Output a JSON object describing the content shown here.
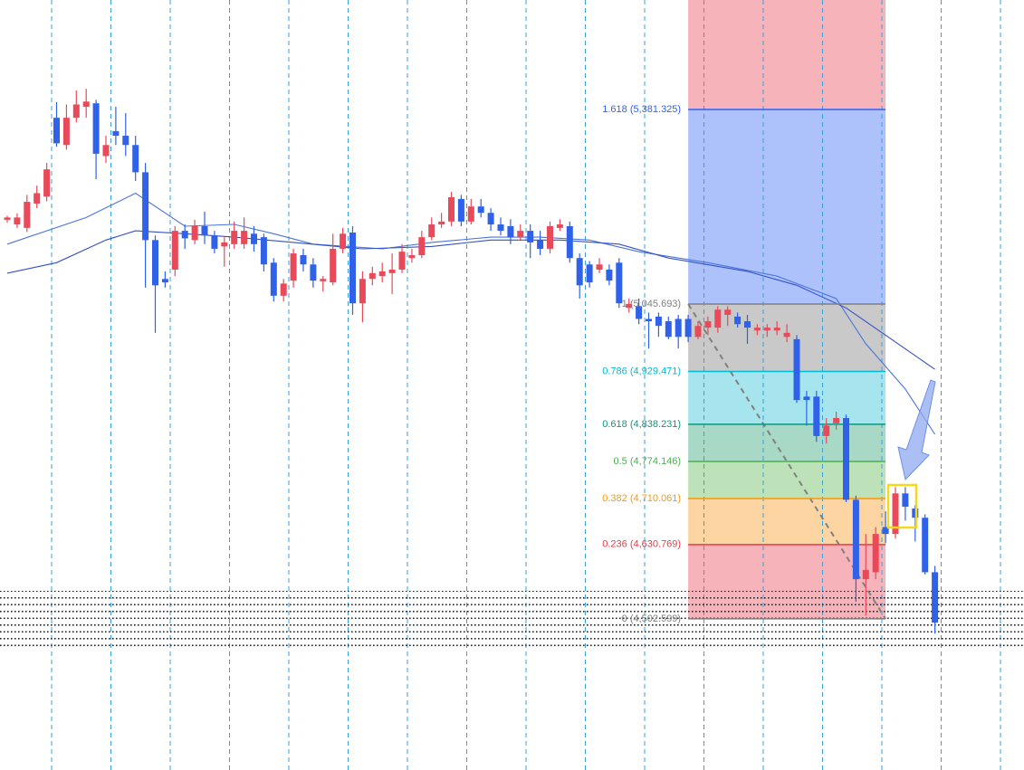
{
  "chart_data": {
    "type": "candlestick",
    "ylim": [
      4241.8,
      5570.2
    ],
    "up_color": "#e84a5a",
    "down_color": "#2f62e8",
    "candles": {
      "open": [
        5191,
        5183,
        5177,
        5219,
        5231,
        5367,
        5320,
        5367,
        5386,
        5392,
        5301,
        5344,
        5336,
        5320,
        5273,
        5156,
        5089,
        5105,
        5172,
        5156,
        5180,
        5164,
        5145,
        5149,
        5149,
        5167,
        5161,
        5117,
        5060,
        5086,
        5130,
        5114,
        5085,
        5083,
        5141,
        5169,
        5047,
        5089,
        5094,
        5099,
        5105,
        5125,
        5130,
        5161,
        5183,
        5188,
        5227,
        5188,
        5214,
        5203,
        5183,
        5180,
        5161,
        5172,
        5156,
        5141,
        5177,
        5180,
        5125,
        5114,
        5105,
        5105,
        5117,
        5039,
        5042,
        5020,
        5024,
        5016,
        5020,
        5020,
        4989,
        5005,
        5005,
        5027,
        5024,
        5016,
        5000,
        5000,
        5000,
        4989,
        4985,
        4886,
        4886,
        4818,
        4840,
        4849,
        4708,
        4571,
        4583,
        4661,
        4649,
        4719,
        4693,
        4677,
        4583
      ],
      "high": [
        5198,
        5202,
        5234,
        5250,
        5289,
        5394,
        5390,
        5414,
        5417,
        5398,
        5336,
        5386,
        5375,
        5336,
        5289,
        5164,
        5102,
        5180,
        5183,
        5191,
        5205,
        5172,
        5161,
        5188,
        5195,
        5180,
        5167,
        5125,
        5089,
        5141,
        5141,
        5125,
        5094,
        5167,
        5177,
        5180,
        5102,
        5110,
        5117,
        5133,
        5149,
        5141,
        5172,
        5195,
        5203,
        5239,
        5234,
        5227,
        5227,
        5211,
        5195,
        5192,
        5183,
        5183,
        5172,
        5188,
        5192,
        5188,
        5133,
        5120,
        5125,
        5114,
        5125,
        5055,
        5055,
        5031,
        5031,
        5024,
        5027,
        5027,
        5016,
        5024,
        5042,
        5042,
        5031,
        5027,
        5011,
        5011,
        5016,
        5011,
        4992,
        4896,
        4896,
        4849,
        4860,
        4855,
        4715,
        4649,
        4661,
        4688,
        4730,
        4730,
        4699,
        4683,
        4594
      ],
      "low": [
        5186,
        5177,
        5170,
        5211,
        5223,
        5317,
        5312,
        5359,
        5367,
        5261,
        5289,
        5320,
        5301,
        5258,
        5074,
        4996,
        5074,
        5094,
        5141,
        5149,
        5149,
        5133,
        5110,
        5141,
        5141,
        5136,
        5102,
        5050,
        5050,
        5074,
        5102,
        5074,
        5067,
        5078,
        5133,
        5027,
        5014,
        5078,
        5083,
        5063,
        5099,
        5117,
        5125,
        5156,
        5177,
        5180,
        5180,
        5183,
        5195,
        5172,
        5164,
        5149,
        5156,
        5125,
        5130,
        5133,
        5172,
        5117,
        5055,
        5074,
        5099,
        5078,
        5039,
        5031,
        5011,
        4969,
        4989,
        4985,
        4969,
        4980,
        4985,
        4992,
        4996,
        5008,
        5005,
        4977,
        4992,
        4989,
        4992,
        4980,
        4875,
        4836,
        4808,
        4805,
        4829,
        4704,
        4532,
        4508,
        4571,
        4633,
        4641,
        4672,
        4636,
        4579,
        4477
      ],
      "close": [
        5195,
        5195,
        5222,
        5237,
        5278,
        5323,
        5367,
        5390,
        5395,
        5305,
        5320,
        5336,
        5320,
        5273,
        5156,
        5078,
        5083,
        5172,
        5159,
        5180,
        5164,
        5141,
        5152,
        5172,
        5172,
        5149,
        5114,
        5060,
        5081,
        5133,
        5114,
        5086,
        5089,
        5141,
        5167,
        5047,
        5089,
        5099,
        5102,
        5105,
        5136,
        5130,
        5161,
        5183,
        5188,
        5230,
        5188,
        5214,
        5203,
        5183,
        5172,
        5161,
        5172,
        5152,
        5141,
        5180,
        5183,
        5125,
        5078,
        5083,
        5114,
        5086,
        5047,
        5046,
        5020,
        5016,
        5008,
        4989,
        4989,
        4989,
        5008,
        5016,
        5036,
        5036,
        5011,
        5005,
        5005,
        5005,
        5005,
        4996,
        4880,
        4880,
        4818,
        4836,
        4849,
        4708,
        4571,
        4587,
        4649,
        4649,
        4719,
        4696,
        4677,
        4583,
        4496
      ]
    },
    "overlays": [
      {
        "color": "#4a74dc",
        "x": [
          0,
          8,
          13,
          18,
          23,
          27,
          31,
          38,
          43,
          49,
          54,
          59,
          64,
          71,
          78,
          84,
          87,
          91,
          94
        ],
        "values": [
          5149,
          5195,
          5237,
          5180,
          5183,
          5167,
          5149,
          5141,
          5152,
          5161,
          5161,
          5156,
          5136,
          5117,
          5094,
          5055,
          4977,
          4899,
          4821
        ]
      },
      {
        "color": "#3550c8",
        "x": [
          0,
          5,
          10,
          13,
          18,
          23,
          29,
          36,
          43,
          49,
          56,
          62,
          67,
          75,
          80,
          85,
          89,
          94
        ],
        "values": [
          5099,
          5117,
          5156,
          5172,
          5167,
          5161,
          5152,
          5141,
          5145,
          5156,
          5156,
          5149,
          5125,
          5102,
          5078,
          5039,
          4992,
          4933
        ]
      }
    ],
    "fib": {
      "start_index": 69,
      "end_index": 89,
      "top_fill": "#f7b3ba",
      "trend_color": "#808080",
      "levels": [
        {
          "value": 5381.325,
          "label": "1.618 (5,381.325)",
          "color": "#2962ff",
          "fill": "#adc1fb"
        },
        {
          "value": 5045.693,
          "label": "1 (5,045.693)",
          "color": "#808080",
          "fill": "#c9c9c9"
        },
        {
          "value": 4929.471,
          "label": "0.786 (4,929.471)",
          "color": "#00bcd4",
          "fill": "#a6e5ee"
        },
        {
          "value": 4838.231,
          "label": "0.618 (4,838.231)",
          "color": "#089981",
          "fill": "#a8d8c6"
        },
        {
          "value": 4774.146,
          "label": "0.5 (4,774.146)",
          "color": "#4caf50",
          "fill": "#bde2b9"
        },
        {
          "value": 4710.061,
          "label": "0.382 (4,710.061)",
          "color": "#ff9800",
          "fill": "#fdd5a2"
        },
        {
          "value": 4630.769,
          "label": "0.236 (4,630.769)",
          "color": "#f23645",
          "fill": "#f7b3ba"
        },
        {
          "value": 4502.599,
          "label": "0 (4,502.599)",
          "color": "#808080"
        }
      ]
    }
  }
}
